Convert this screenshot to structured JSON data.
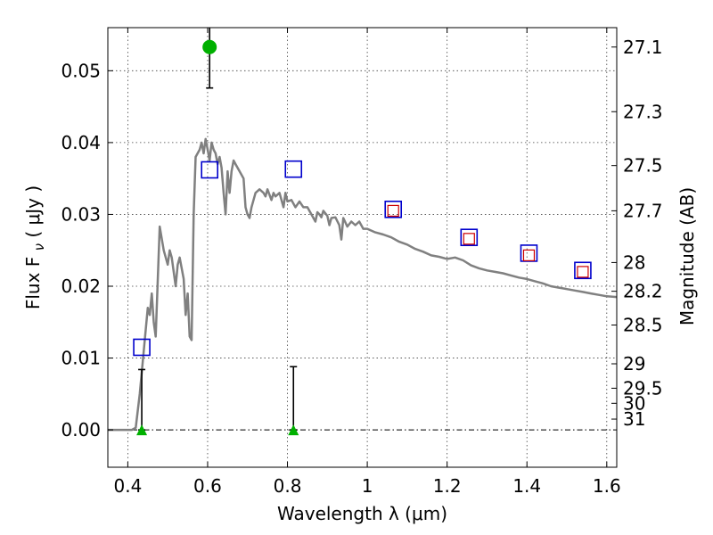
{
  "chart_data": {
    "type": "scatter",
    "title": "",
    "xlabel": "Wavelength  λ (μm)",
    "ylabel": "Flux  F",
    "ylabel_sub": "ν",
    "ylabel_unit": "  ( μJy )",
    "y2label": "Magnitude (AB)",
    "xlim": [
      0.35,
      1.625
    ],
    "ylim": [
      -0.0052,
      0.056
    ],
    "grid": true,
    "x_ticks": [
      0.4,
      0.6,
      0.8,
      1.0,
      1.2,
      1.4,
      1.6
    ],
    "x_tick_labels": [
      "0.4",
      "0.6",
      "0.8",
      "1",
      "1.2",
      "1.4",
      "1.6"
    ],
    "y_ticks": [
      0.0,
      0.01,
      0.02,
      0.03,
      0.04,
      0.05
    ],
    "y_tick_labels": [
      "0.00",
      "0.01",
      "0.02",
      "0.03",
      "0.04",
      "0.05"
    ],
    "y2_ticks": [
      {
        "flux": 0.0533,
        "label": "27.1"
      },
      {
        "flux": 0.0443,
        "label": "27.3"
      },
      {
        "flux": 0.0368,
        "label": "27.5"
      },
      {
        "flux": 0.0305,
        "label": "27.7"
      },
      {
        "flux": 0.0233,
        "label": "28"
      },
      {
        "flux": 0.0193,
        "label": "28.2"
      },
      {
        "flux": 0.0146,
        "label": "28.5"
      },
      {
        "flux": 0.0092,
        "label": "29"
      },
      {
        "flux": 0.0058,
        "label": "29.5"
      },
      {
        "flux": 0.0037,
        "label": "30"
      },
      {
        "flux": 0.0015,
        "label": "31"
      }
    ],
    "colors": {
      "model": "#808080",
      "model_points": "#0000cc",
      "observed": "#cc0000",
      "detection": "#00b000",
      "errorbar": "#000000",
      "zero_line": "#000000"
    },
    "series": [
      {
        "kind": "model_sed",
        "points": [
          [
            0.35,
            0.0
          ],
          [
            0.41,
            0.0
          ],
          [
            0.42,
            0.0003
          ],
          [
            0.43,
            0.005
          ],
          [
            0.44,
            0.011
          ],
          [
            0.45,
            0.017
          ],
          [
            0.455,
            0.016
          ],
          [
            0.46,
            0.019
          ],
          [
            0.465,
            0.015
          ],
          [
            0.47,
            0.013
          ],
          [
            0.48,
            0.0283
          ],
          [
            0.49,
            0.025
          ],
          [
            0.5,
            0.023
          ],
          [
            0.505,
            0.025
          ],
          [
            0.51,
            0.024
          ],
          [
            0.52,
            0.02
          ],
          [
            0.525,
            0.023
          ],
          [
            0.53,
            0.024
          ],
          [
            0.54,
            0.021
          ],
          [
            0.545,
            0.016
          ],
          [
            0.55,
            0.019
          ],
          [
            0.555,
            0.013
          ],
          [
            0.56,
            0.0125
          ],
          [
            0.565,
            0.03
          ],
          [
            0.57,
            0.038
          ],
          [
            0.58,
            0.039
          ],
          [
            0.585,
            0.04
          ],
          [
            0.59,
            0.0385
          ],
          [
            0.595,
            0.0405
          ],
          [
            0.6,
            0.039
          ],
          [
            0.605,
            0.0375
          ],
          [
            0.61,
            0.04
          ],
          [
            0.615,
            0.039
          ],
          [
            0.62,
            0.0385
          ],
          [
            0.625,
            0.037
          ],
          [
            0.63,
            0.038
          ],
          [
            0.635,
            0.0365
          ],
          [
            0.64,
            0.033
          ],
          [
            0.645,
            0.03
          ],
          [
            0.65,
            0.036
          ],
          [
            0.655,
            0.033
          ],
          [
            0.66,
            0.036
          ],
          [
            0.665,
            0.0375
          ],
          [
            0.67,
            0.037
          ],
          [
            0.68,
            0.036
          ],
          [
            0.69,
            0.035
          ],
          [
            0.695,
            0.031
          ],
          [
            0.7,
            0.03
          ],
          [
            0.705,
            0.0295
          ],
          [
            0.71,
            0.031
          ],
          [
            0.72,
            0.033
          ],
          [
            0.73,
            0.0335
          ],
          [
            0.74,
            0.033
          ],
          [
            0.745,
            0.0325
          ],
          [
            0.75,
            0.0335
          ],
          [
            0.76,
            0.032
          ],
          [
            0.765,
            0.033
          ],
          [
            0.77,
            0.0325
          ],
          [
            0.78,
            0.033
          ],
          [
            0.79,
            0.031
          ],
          [
            0.795,
            0.033
          ],
          [
            0.8,
            0.0318
          ],
          [
            0.81,
            0.032
          ],
          [
            0.82,
            0.031
          ],
          [
            0.83,
            0.0318
          ],
          [
            0.84,
            0.031
          ],
          [
            0.85,
            0.031
          ],
          [
            0.86,
            0.03
          ],
          [
            0.87,
            0.029
          ],
          [
            0.875,
            0.0303
          ],
          [
            0.88,
            0.03
          ],
          [
            0.885,
            0.0296
          ],
          [
            0.89,
            0.0305
          ],
          [
            0.9,
            0.0298
          ],
          [
            0.905,
            0.0285
          ],
          [
            0.91,
            0.0295
          ],
          [
            0.92,
            0.0296
          ],
          [
            0.93,
            0.0285
          ],
          [
            0.935,
            0.0265
          ],
          [
            0.94,
            0.0295
          ],
          [
            0.95,
            0.0283
          ],
          [
            0.96,
            0.029
          ],
          [
            0.97,
            0.0285
          ],
          [
            0.98,
            0.029
          ],
          [
            0.99,
            0.028
          ],
          [
            1.0,
            0.028
          ],
          [
            1.02,
            0.0275
          ],
          [
            1.04,
            0.0272
          ],
          [
            1.06,
            0.0268
          ],
          [
            1.08,
            0.0262
          ],
          [
            1.1,
            0.0258
          ],
          [
            1.12,
            0.0252
          ],
          [
            1.14,
            0.0248
          ],
          [
            1.16,
            0.0243
          ],
          [
            1.18,
            0.0241
          ],
          [
            1.2,
            0.0238
          ],
          [
            1.22,
            0.024
          ],
          [
            1.24,
            0.0236
          ],
          [
            1.26,
            0.0229
          ],
          [
            1.28,
            0.0225
          ],
          [
            1.3,
            0.0222
          ],
          [
            1.32,
            0.022
          ],
          [
            1.34,
            0.0218
          ],
          [
            1.36,
            0.0215
          ],
          [
            1.38,
            0.0212
          ],
          [
            1.4,
            0.021
          ],
          [
            1.42,
            0.0207
          ],
          [
            1.44,
            0.0204
          ],
          [
            1.46,
            0.02
          ],
          [
            1.48,
            0.0198
          ],
          [
            1.5,
            0.0196
          ],
          [
            1.52,
            0.0194
          ],
          [
            1.54,
            0.0192
          ],
          [
            1.56,
            0.019
          ],
          [
            1.58,
            0.0188
          ],
          [
            1.6,
            0.0186
          ],
          [
            1.625,
            0.0185
          ]
        ]
      },
      {
        "kind": "model_photometry",
        "marker": "open-square",
        "points": [
          [
            0.435,
            0.0115
          ],
          [
            0.605,
            0.0362
          ],
          [
            0.815,
            0.0363
          ],
          [
            1.065,
            0.0307
          ],
          [
            1.255,
            0.0268
          ],
          [
            1.405,
            0.0246
          ],
          [
            1.54,
            0.0222
          ]
        ]
      },
      {
        "kind": "observed_photometry",
        "marker": "open-square-small",
        "points": [
          [
            1.065,
            0.0305
          ],
          [
            1.255,
            0.0266
          ],
          [
            1.405,
            0.0243
          ],
          [
            1.54,
            0.022
          ]
        ]
      },
      {
        "kind": "detections",
        "marker": "filled-circle",
        "points": [
          [
            0.605,
            0.0533
          ]
        ],
        "errors": [
          [
            0.0476,
            0.0565
          ]
        ]
      },
      {
        "kind": "upper_limits",
        "marker": "filled-triangle",
        "points": [
          [
            0.435,
            0.0
          ],
          [
            0.815,
            0.0
          ]
        ],
        "errors": [
          [
            0.0,
            0.0084
          ],
          [
            0.0,
            0.0088
          ]
        ]
      }
    ]
  }
}
